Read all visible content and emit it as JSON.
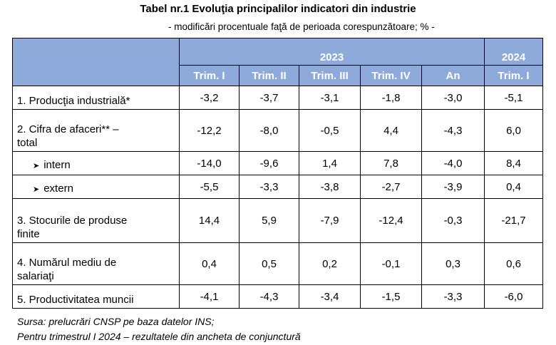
{
  "title": "Tabel nr.1  Evoluţia principalilor indicatori din industrie",
  "subtitle": "- modificări procentuale faţă de perioada corespunzătoare;  % -",
  "header": {
    "year_2023": "2023",
    "year_2024": "2024",
    "columns": [
      "Trim. I",
      "Trim. II",
      "Trim. III",
      "Trim. IV",
      "An",
      "Trim. I"
    ]
  },
  "rows": [
    {
      "label": "1. Producţia industrială*",
      "values": [
        "-3,2",
        "-3,7",
        "-3,1",
        "-1,8",
        "-3,0",
        "-5,1"
      ]
    },
    {
      "label": "2. Cifra de afaceri**  –\ntotal",
      "values": [
        "-12,2",
        "-8,0",
        "-0,5",
        "4,4",
        "-4,3",
        "6,0"
      ]
    },
    {
      "label": "intern",
      "values": [
        "-14,0",
        "-9,6",
        "1,4",
        "7,8",
        "-4,0",
        "8,4"
      ]
    },
    {
      "label": "extern",
      "values": [
        "-5,5",
        "-3,3",
        "-3,8",
        "-2,7",
        "-3,9",
        "0,4"
      ]
    },
    {
      "label": "3. Stocurile de produse\nfinite",
      "values": [
        "14,4",
        "5,9",
        "-7,9",
        "-12,4",
        "-0,3",
        "-21,7"
      ]
    },
    {
      "label": "4. Numărul mediu de\nsalariaţi",
      "values": [
        "0,4",
        "0,5",
        "0,2",
        "-0,1",
        "0,3",
        "0,6"
      ]
    },
    {
      "label": "5. Productivitatea muncii",
      "values": [
        "-4,1",
        "-4,3",
        "-3,4",
        "-1,5",
        "-3,3",
        "-6,0"
      ]
    }
  ],
  "footer": {
    "source": "Sursa: prelucrări CNSP pe baza datelor INS;",
    "note": "Pentru trimestrul I 2024 – rezultatele din ancheta de conjunctură"
  }
}
